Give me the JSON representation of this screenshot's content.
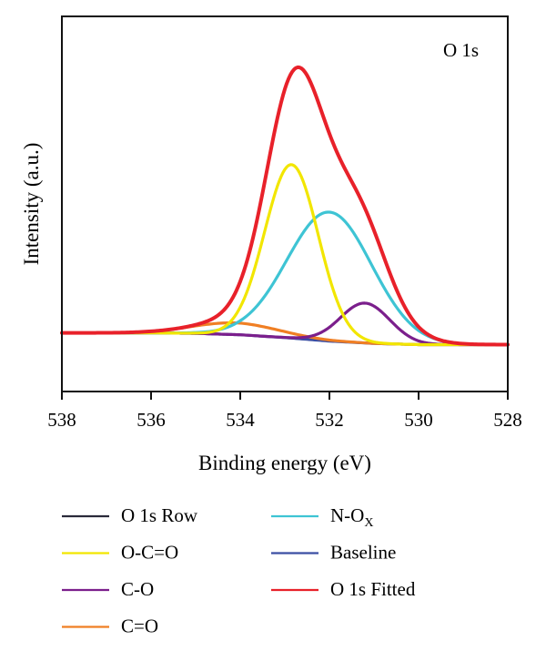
{
  "chart_data": {
    "type": "line",
    "panel_label": "O 1s",
    "xlabel": "Binding energy (eV)",
    "ylabel": "Intensity (a.u.)",
    "xlim": [
      538,
      528
    ],
    "x_reversed": true,
    "ylim": [
      -0.25,
      1.35
    ],
    "x_ticks": [
      "538",
      "536",
      "534",
      "532",
      "530",
      "528"
    ],
    "x_tick_values": [
      538,
      536,
      534,
      532,
      530,
      528
    ],
    "y_ticks_shown": false,
    "grid": false,
    "legend_placement": "below",
    "legend": [
      {
        "label": "O 1s Row",
        "color": "#2a2a3a",
        "column": 0
      },
      {
        "label": "O-C=O",
        "color": "#f2e600",
        "column": 0
      },
      {
        "label": "C-O",
        "color": "#7b1f8c",
        "column": 0
      },
      {
        "label": "C=O",
        "color": "#f07f24",
        "column": 0
      },
      {
        "label": "N-O",
        "label_sub": "X",
        "color": "#3ec4d4",
        "column": 1
      },
      {
        "label": "Baseline",
        "color": "#3b4ea3",
        "column": 1
      },
      {
        "label": "O 1s Fitted",
        "color": "#e8212a",
        "column": 1
      }
    ],
    "series": [
      {
        "name": "Baseline",
        "color": "#3b4ea3",
        "x": [
          538,
          537,
          536,
          535,
          534,
          533,
          532,
          531,
          530,
          529,
          528
        ],
        "y": [
          0.0,
          0.0,
          0.0,
          -0.002,
          -0.008,
          -0.02,
          -0.035,
          -0.045,
          -0.05,
          -0.05,
          -0.05
        ]
      },
      {
        "name": "C=O",
        "color": "#f07f24",
        "peaks": [
          {
            "center": 534.1,
            "height": 0.05,
            "sigma": 0.95
          }
        ]
      },
      {
        "name": "C-O",
        "color": "#7b1f8c",
        "peaks": [
          {
            "center": 531.2,
            "height": 0.17,
            "sigma": 0.55
          }
        ]
      },
      {
        "name": "N-O",
        "name_sub": "X",
        "color": "#3ec4d4",
        "peaks": [
          {
            "center": 532.0,
            "height": 0.55,
            "sigma": 0.95
          }
        ]
      },
      {
        "name": "O-C=O",
        "color": "#f2e600",
        "peaks": [
          {
            "center": 532.85,
            "height": 0.74,
            "sigma": 0.6
          }
        ]
      },
      {
        "name": "O 1s Row",
        "color": "#2a2a3a",
        "x": [
          538,
          536,
          535,
          534,
          533,
          532.7,
          532,
          531,
          530,
          529,
          528
        ],
        "y": [
          0.0,
          0.01,
          0.04,
          0.2,
          0.75,
          1.07,
          0.8,
          0.28,
          0.03,
          -0.04,
          -0.05
        ]
      },
      {
        "name": "O 1s Fitted",
        "color": "#e8212a",
        "x": [
          538,
          536,
          535,
          534,
          533,
          532.7,
          532,
          531,
          530,
          529,
          528
        ],
        "y": [
          0.0,
          0.01,
          0.04,
          0.2,
          0.75,
          1.07,
          0.8,
          0.28,
          0.03,
          -0.04,
          -0.05
        ]
      }
    ]
  }
}
